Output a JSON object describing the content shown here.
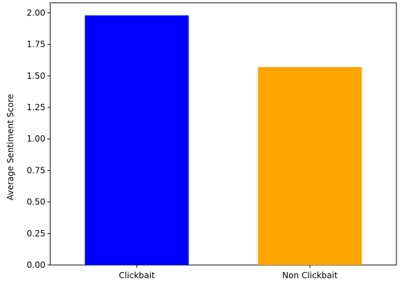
{
  "chart_data": {
    "type": "bar",
    "title": "",
    "xlabel": "",
    "ylabel": "Average Sentiment Score",
    "categories": [
      "Clickbait",
      "Non Clickbait"
    ],
    "values": [
      1.98,
      1.57
    ],
    "colors": [
      "#0000ff",
      "#ffa500"
    ],
    "ylim": [
      0,
      2.08
    ],
    "yticks": [
      "0.00",
      "0.25",
      "0.50",
      "0.75",
      "1.00",
      "1.25",
      "1.50",
      "1.75",
      "2.00"
    ],
    "grid": false,
    "legend": "none"
  }
}
